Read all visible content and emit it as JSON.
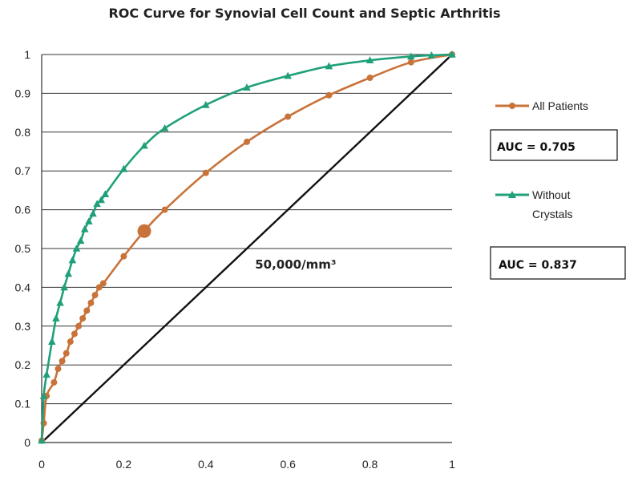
{
  "chart_data": {
    "type": "line",
    "title": "ROC Curve for Synovial Cell Count and Septic Arthritis",
    "xlabel": "",
    "ylabel": "",
    "xlim": [
      0,
      1
    ],
    "ylim": [
      0,
      1
    ],
    "x_ticks": [
      "0",
      "0.2",
      "0.4",
      "0.6",
      "0.8",
      "1"
    ],
    "y_ticks": [
      "0",
      "0.1",
      "0.2",
      "0.3",
      "0.4",
      "0.5",
      "0.6",
      "0.7",
      "0.8",
      "0.9",
      "1"
    ],
    "grid": "horizontal",
    "legend_position": "right",
    "series": [
      {
        "name": "All Patients",
        "color": "#c8733a",
        "marker": "circle",
        "auc_label": "AUC = 0.705",
        "points": [
          [
            0,
            0.005
          ],
          [
            0.005,
            0.05
          ],
          [
            0.012,
            0.12
          ],
          [
            0.03,
            0.155
          ],
          [
            0.04,
            0.19
          ],
          [
            0.05,
            0.21
          ],
          [
            0.06,
            0.23
          ],
          [
            0.07,
            0.26
          ],
          [
            0.08,
            0.28
          ],
          [
            0.09,
            0.3
          ],
          [
            0.1,
            0.32
          ],
          [
            0.11,
            0.34
          ],
          [
            0.12,
            0.36
          ],
          [
            0.13,
            0.38
          ],
          [
            0.14,
            0.4
          ],
          [
            0.15,
            0.41
          ],
          [
            0.2,
            0.48
          ],
          [
            0.25,
            0.545
          ],
          [
            0.3,
            0.6
          ],
          [
            0.4,
            0.695
          ],
          [
            0.5,
            0.775
          ],
          [
            0.6,
            0.84
          ],
          [
            0.7,
            0.895
          ],
          [
            0.8,
            0.94
          ],
          [
            0.9,
            0.98
          ],
          [
            1,
            1
          ]
        ],
        "highlight_point": [
          0.25,
          0.545
        ]
      },
      {
        "name": "Without Crystals",
        "color": "#20a07a",
        "marker": "triangle",
        "auc_label": "AUC = 0.837",
        "points": [
          [
            0,
            0.005
          ],
          [
            0.005,
            0.12
          ],
          [
            0.012,
            0.175
          ],
          [
            0.025,
            0.26
          ],
          [
            0.035,
            0.32
          ],
          [
            0.045,
            0.36
          ],
          [
            0.055,
            0.4
          ],
          [
            0.065,
            0.435
          ],
          [
            0.075,
            0.47
          ],
          [
            0.085,
            0.5
          ],
          [
            0.095,
            0.52
          ],
          [
            0.105,
            0.55
          ],
          [
            0.115,
            0.57
          ],
          [
            0.125,
            0.59
          ],
          [
            0.135,
            0.615
          ],
          [
            0.145,
            0.625
          ],
          [
            0.155,
            0.64
          ],
          [
            0.2,
            0.705
          ],
          [
            0.25,
            0.765
          ],
          [
            0.3,
            0.81
          ],
          [
            0.4,
            0.87
          ],
          [
            0.5,
            0.915
          ],
          [
            0.6,
            0.945
          ],
          [
            0.7,
            0.97
          ],
          [
            0.8,
            0.985
          ],
          [
            0.9,
            0.995
          ],
          [
            0.95,
            0.998
          ],
          [
            1,
            1
          ]
        ]
      },
      {
        "name": "",
        "color": "#111111",
        "marker": "none",
        "points": [
          [
            0,
            0
          ],
          [
            1,
            1
          ]
        ]
      }
    ],
    "annotations": [
      {
        "text": "50,000/mm³",
        "x": 0.52,
        "y": 0.5
      }
    ]
  }
}
